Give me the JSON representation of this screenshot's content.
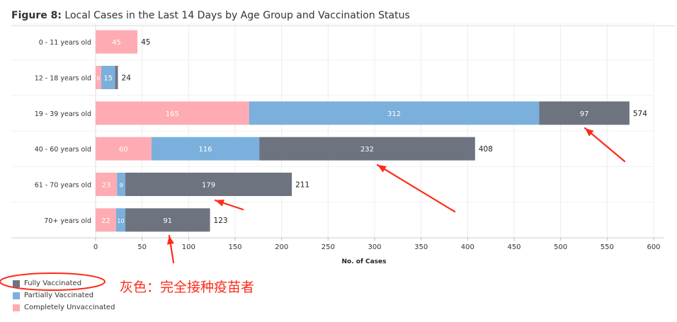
{
  "title": {
    "prefix": "Figure 8:",
    "text": " Local Cases in the Last 14 Days by Age Group and Vaccination Status"
  },
  "chart_data": {
    "type": "bar",
    "orientation": "horizontal",
    "stacked": true,
    "categories": [
      "0 - 11 years old",
      "12 - 18 years old",
      "19 - 39 years old",
      "40 - 60 years old",
      "61 - 70 years old",
      "70+ years old"
    ],
    "series": [
      {
        "name": "Completely Unvaccinated",
        "color": "#ffabb3",
        "values": [
          45,
          6,
          165,
          60,
          23,
          22
        ]
      },
      {
        "name": "Partially Vaccinated",
        "color": "#7ab0db",
        "values": [
          0,
          15,
          312,
          116,
          9,
          10
        ]
      },
      {
        "name": "Fully Vaccinated",
        "color": "#6e7380",
        "values": [
          0,
          3,
          97,
          232,
          179,
          91
        ]
      }
    ],
    "totals": [
      45,
      24,
      574,
      408,
      211,
      123
    ],
    "xlabel": "No. of Cases",
    "xlim": [
      0,
      600
    ],
    "xticks": [
      0,
      50,
      100,
      150,
      200,
      250,
      300,
      350,
      400,
      450,
      500,
      550,
      600
    ],
    "grid": true
  },
  "legend": {
    "items": [
      {
        "label": "Fully Vaccinated",
        "color": "#6e7380"
      },
      {
        "label": "Partially Vaccinated",
        "color": "#7ab0db"
      },
      {
        "label": "Completely Unvaccinated",
        "color": "#ffabb3"
      }
    ]
  },
  "annotation": {
    "text": "灰色：完全接种疫苗者",
    "color": "#ff2a1a"
  }
}
